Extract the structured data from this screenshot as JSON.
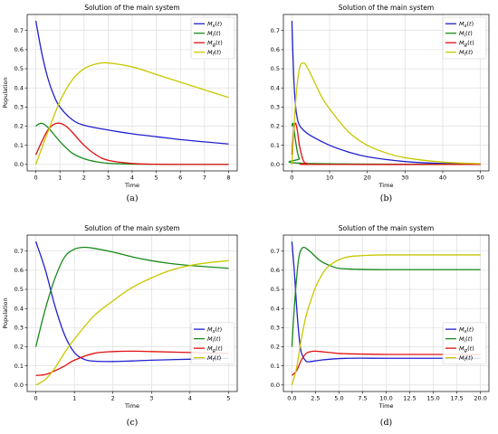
{
  "chart_data": [
    {
      "type": "line",
      "title": "Solution of the main system",
      "xlabel": "Time",
      "ylabel": "Population",
      "caption": "(a)",
      "xlim": [
        0,
        8
      ],
      "ylim": [
        0,
        0.75
      ],
      "xticks": [
        0,
        1,
        2,
        3,
        4,
        5,
        6,
        7,
        8
      ],
      "yticks": [
        0.0,
        0.1,
        0.2,
        0.3,
        0.4,
        0.5,
        0.6,
        0.7
      ],
      "grid": true,
      "legend": "top-right",
      "series": [
        {
          "name": "Ms(t)",
          "color": "#1f1fd0",
          "x": [
            0,
            0.25,
            0.5,
            0.75,
            1,
            1.5,
            2,
            3,
            4,
            5,
            6,
            7,
            8
          ],
          "y": [
            0.75,
            0.58,
            0.45,
            0.36,
            0.3,
            0.235,
            0.205,
            0.18,
            0.16,
            0.145,
            0.13,
            0.118,
            0.107
          ]
        },
        {
          "name": "Mi(t)",
          "color": "#1a8a1a",
          "x": [
            0,
            0.1,
            0.25,
            0.4,
            0.6,
            1,
            1.5,
            2,
            2.5,
            3,
            4,
            5,
            6,
            8
          ],
          "y": [
            0.2,
            0.21,
            0.215,
            0.205,
            0.18,
            0.12,
            0.06,
            0.03,
            0.014,
            0.006,
            0.002,
            0.001,
            0.0,
            0.0
          ]
        },
        {
          "name": "Mg(t)",
          "color": "#e01010",
          "x": [
            0,
            0.25,
            0.5,
            0.75,
            1,
            1.25,
            1.5,
            2,
            2.5,
            3,
            4,
            5,
            6,
            8
          ],
          "y": [
            0.05,
            0.12,
            0.18,
            0.21,
            0.215,
            0.2,
            0.17,
            0.1,
            0.05,
            0.022,
            0.005,
            0.001,
            0.0,
            0.0
          ]
        },
        {
          "name": "Mf(t)",
          "color": "#c8c800",
          "x": [
            0,
            0.5,
            1,
            1.5,
            2,
            2.5,
            3,
            4,
            5,
            6,
            7,
            8
          ],
          "y": [
            0.0,
            0.17,
            0.33,
            0.44,
            0.5,
            0.525,
            0.53,
            0.51,
            0.47,
            0.43,
            0.39,
            0.35
          ]
        }
      ]
    },
    {
      "type": "line",
      "title": "Solution of the main system",
      "xlabel": "Time",
      "ylabel": "",
      "caption": "(b)",
      "xlim": [
        0,
        50
      ],
      "ylim": [
        0,
        0.75
      ],
      "xticks": [
        0,
        10,
        20,
        30,
        40,
        50
      ],
      "yticks": [
        0.0,
        0.1,
        0.2,
        0.3,
        0.4,
        0.5,
        0.6,
        0.7
      ],
      "grid": true,
      "legend": "top-right",
      "series": [
        {
          "name": "Ms(t)",
          "color": "#1f1fd0",
          "x": [
            0,
            0.5,
            1,
            1.5,
            2,
            3,
            5,
            10,
            15,
            20,
            30,
            40,
            50
          ],
          "y": [
            0.75,
            0.45,
            0.3,
            0.235,
            0.205,
            0.18,
            0.15,
            0.1,
            0.065,
            0.04,
            0.015,
            0.005,
            0.002
          ]
        },
        {
          "name": "Mi(t)",
          "color": "#1a8a1a",
          "x": [
            0,
            0.25,
            0.5,
            1,
            1.5,
            2,
            3,
            50
          ],
          "y": [
            0.2,
            0.215,
            0.19,
            0.12,
            0.06,
            0.03,
            0.006,
            0.0
          ]
        },
        {
          "name": "Mg(t)",
          "color": "#e01010",
          "x": [
            0,
            0.5,
            1,
            1.5,
            2,
            3,
            4,
            6,
            50
          ],
          "y": [
            0.05,
            0.18,
            0.215,
            0.17,
            0.1,
            0.022,
            0.005,
            0.0,
            0.0
          ]
        },
        {
          "name": "Mf(t)",
          "color": "#c8c800",
          "x": [
            0,
            1,
            2,
            3,
            4,
            6,
            8,
            10,
            15,
            20,
            25,
            30,
            40,
            50
          ],
          "y": [
            0.0,
            0.33,
            0.5,
            0.53,
            0.51,
            0.43,
            0.35,
            0.29,
            0.17,
            0.1,
            0.06,
            0.035,
            0.012,
            0.004
          ]
        }
      ]
    },
    {
      "type": "line",
      "title": "Solution of the main system",
      "xlabel": "Time",
      "ylabel": "Population",
      "caption": "(c)",
      "xlim": [
        0,
        5
      ],
      "ylim": [
        0,
        0.75
      ],
      "xticks": [
        0,
        1,
        2,
        3,
        4,
        5
      ],
      "yticks": [
        0.0,
        0.1,
        0.2,
        0.3,
        0.4,
        0.5,
        0.6,
        0.7
      ],
      "grid": true,
      "legend": "center-right",
      "series": [
        {
          "name": "Ms(t)",
          "color": "#1f1fd0",
          "x": [
            0,
            0.25,
            0.5,
            0.75,
            1,
            1.25,
            1.5,
            2,
            2.5,
            3,
            4,
            5
          ],
          "y": [
            0.75,
            0.6,
            0.41,
            0.26,
            0.17,
            0.135,
            0.125,
            0.123,
            0.126,
            0.13,
            0.135,
            0.14
          ]
        },
        {
          "name": "Mi(t)",
          "color": "#1a8a1a",
          "x": [
            0,
            0.25,
            0.5,
            0.75,
            1,
            1.25,
            1.5,
            2,
            2.5,
            3,
            3.5,
            4,
            5
          ],
          "y": [
            0.2,
            0.4,
            0.56,
            0.67,
            0.71,
            0.72,
            0.715,
            0.695,
            0.67,
            0.65,
            0.635,
            0.625,
            0.61
          ]
        },
        {
          "name": "Mg(t)",
          "color": "#e01010",
          "x": [
            0,
            0.25,
            0.5,
            0.75,
            1,
            1.5,
            2,
            2.5,
            3,
            4,
            5
          ],
          "y": [
            0.05,
            0.055,
            0.075,
            0.1,
            0.13,
            0.165,
            0.175,
            0.177,
            0.175,
            0.17,
            0.165
          ]
        },
        {
          "name": "Mf(t)",
          "color": "#c8c800",
          "x": [
            0,
            0.25,
            0.5,
            0.75,
            1,
            1.5,
            2,
            2.5,
            3,
            3.5,
            4,
            4.5,
            5
          ],
          "y": [
            0.0,
            0.03,
            0.09,
            0.17,
            0.24,
            0.36,
            0.44,
            0.51,
            0.56,
            0.6,
            0.625,
            0.64,
            0.65
          ]
        }
      ]
    },
    {
      "type": "line",
      "title": "Solution of the main system",
      "xlabel": "Time",
      "ylabel": "",
      "caption": "(d)",
      "xlim": [
        0,
        20
      ],
      "ylim": [
        0,
        0.75
      ],
      "xticks": [
        0.0,
        2.5,
        5.0,
        7.5,
        10.0,
        12.5,
        15.0,
        17.5,
        20.0
      ],
      "yticks": [
        0.0,
        0.1,
        0.2,
        0.3,
        0.4,
        0.5,
        0.6,
        0.7
      ],
      "grid": true,
      "legend": "center-right",
      "series": [
        {
          "name": "Ms(t)",
          "color": "#1f1fd0",
          "x": [
            0,
            0.25,
            0.5,
            0.75,
            1,
            1.5,
            2,
            3,
            4,
            6,
            10,
            15,
            20
          ],
          "y": [
            0.75,
            0.6,
            0.41,
            0.26,
            0.17,
            0.125,
            0.123,
            0.13,
            0.135,
            0.14,
            0.14,
            0.14,
            0.14
          ]
        },
        {
          "name": "Mi(t)",
          "color": "#1a8a1a",
          "x": [
            0,
            0.25,
            0.5,
            0.75,
            1,
            1.25,
            1.5,
            2,
            3,
            4,
            5,
            7,
            10,
            15,
            20
          ],
          "y": [
            0.2,
            0.4,
            0.56,
            0.67,
            0.71,
            0.72,
            0.715,
            0.695,
            0.65,
            0.625,
            0.61,
            0.605,
            0.603,
            0.603,
            0.603
          ]
        },
        {
          "name": "Mg(t)",
          "color": "#e01010",
          "x": [
            0,
            0.5,
            1,
            1.5,
            2,
            2.5,
            3,
            4,
            5,
            7,
            10,
            15,
            20
          ],
          "y": [
            0.05,
            0.075,
            0.13,
            0.165,
            0.175,
            0.177,
            0.175,
            0.17,
            0.165,
            0.162,
            0.16,
            0.16,
            0.16
          ]
        },
        {
          "name": "Mf(t)",
          "color": "#c8c800",
          "x": [
            0,
            0.5,
            1,
            1.5,
            2,
            2.5,
            3,
            3.5,
            4,
            5,
            6,
            7,
            8,
            10,
            15,
            20
          ],
          "y": [
            0.0,
            0.09,
            0.24,
            0.36,
            0.44,
            0.51,
            0.56,
            0.6,
            0.625,
            0.655,
            0.67,
            0.675,
            0.678,
            0.68,
            0.68,
            0.68
          ]
        }
      ]
    }
  ]
}
